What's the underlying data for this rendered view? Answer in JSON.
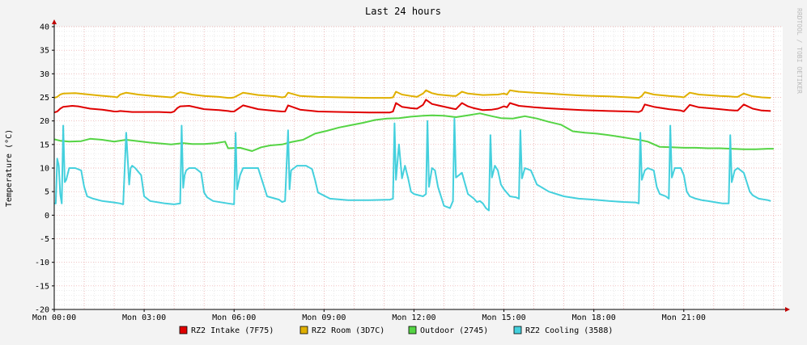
{
  "chart_data": {
    "type": "line",
    "title": "Last 24 hours",
    "ylabel": "Temperature (°C)",
    "xlabel": "",
    "ylim": [
      -20,
      40
    ],
    "yticks": [
      40,
      35,
      30,
      25,
      20,
      15,
      10,
      5,
      0,
      -5,
      -10,
      -15,
      -20
    ],
    "ytick_labels": [
      "40",
      "35",
      "30",
      "25",
      "20",
      "15",
      "10",
      "5",
      "0",
      "-5",
      "-10",
      "-15",
      "-20"
    ],
    "xlim_hours": [
      0,
      24.3
    ],
    "xticks_hours": [
      0,
      3,
      6,
      9,
      12,
      15,
      18,
      21
    ],
    "xtick_labels": [
      "Mon 00:00",
      "Mon 03:00",
      "Mon 06:00",
      "Mon 09:00",
      "Mon 12:00",
      "Mon 15:00",
      "Mon 18:00",
      "Mon 21:00"
    ],
    "grid": true,
    "legend_position": "bottom",
    "watermark": "RRDTOOL / TOBI OETIKER",
    "series": [
      {
        "name": "RZ2 Intake (7F75)",
        "color": "#e00000",
        "x": [
          0,
          0.1,
          0.2,
          0.3,
          0.6,
          0.8,
          1.2,
          1.6,
          1.9,
          2.0,
          2.1,
          2.2,
          2.4,
          2.6,
          3.0,
          3.5,
          3.9,
          4.0,
          4.1,
          4.2,
          4.5,
          5.0,
          5.5,
          5.8,
          5.9,
          6.0,
          6.3,
          6.8,
          7.4,
          7.6,
          7.7,
          7.8,
          8.2,
          8.8,
          9.6,
          10.5,
          11.2,
          11.3,
          11.4,
          11.6,
          11.9,
          12.1,
          12.3,
          12.4,
          12.6,
          12.8,
          13.3,
          13.4,
          13.6,
          13.8,
          14.0,
          14.3,
          14.6,
          14.8,
          15.0,
          15.1,
          15.2,
          15.5,
          16.0,
          16.4,
          17.0,
          17.6,
          18.0,
          18.5,
          19.2,
          19.5,
          19.6,
          19.7,
          20.0,
          20.5,
          20.9,
          21.0,
          21.2,
          21.5,
          22.2,
          22.5,
          22.7,
          22.8,
          23.0,
          23.3,
          23.6,
          23.9
        ],
        "values": [
          21.8,
          22.0,
          22.6,
          23.0,
          23.2,
          23.1,
          22.6,
          22.4,
          22.1,
          22.0,
          22.0,
          22.1,
          22.0,
          21.9,
          21.9,
          21.9,
          21.8,
          22.0,
          22.7,
          23.1,
          23.2,
          22.5,
          22.3,
          22.1,
          22.0,
          22.0,
          23.3,
          22.5,
          22.1,
          22.0,
          22.0,
          23.3,
          22.4,
          22.0,
          21.9,
          21.8,
          21.8,
          22.0,
          23.8,
          23.0,
          22.7,
          22.6,
          23.4,
          24.5,
          23.6,
          23.3,
          22.6,
          22.5,
          23.8,
          23.1,
          22.7,
          22.3,
          22.4,
          22.6,
          23.1,
          22.9,
          23.8,
          23.2,
          22.9,
          22.7,
          22.5,
          22.3,
          22.2,
          22.1,
          22.0,
          21.9,
          22.2,
          23.5,
          23.0,
          22.5,
          22.2,
          22.0,
          23.4,
          22.9,
          22.5,
          22.3,
          22.2,
          22.2,
          23.5,
          22.6,
          22.2,
          22.1
        ]
      },
      {
        "name": "RZ2 Room (3D7C)",
        "color": "#e0b000",
        "x": [
          0,
          0.1,
          0.2,
          0.3,
          0.7,
          1.0,
          1.5,
          2.0,
          2.1,
          2.2,
          2.4,
          2.8,
          3.3,
          3.9,
          4.0,
          4.1,
          4.2,
          4.6,
          5.0,
          5.5,
          5.8,
          5.9,
          6.0,
          6.3,
          6.8,
          7.4,
          7.6,
          7.7,
          7.8,
          8.2,
          8.8,
          9.6,
          10.5,
          11.2,
          11.3,
          11.4,
          11.6,
          11.9,
          12.1,
          12.3,
          12.4,
          12.6,
          12.8,
          13.3,
          13.4,
          13.6,
          13.8,
          14.3,
          14.8,
          15.0,
          15.1,
          15.2,
          15.5,
          16.0,
          16.5,
          17.0,
          17.6,
          18.0,
          18.5,
          19.2,
          19.5,
          19.6,
          19.7,
          20.0,
          20.5,
          20.9,
          21.0,
          21.2,
          21.5,
          22.2,
          22.5,
          22.7,
          22.8,
          23.0,
          23.3,
          23.6,
          23.9
        ],
        "values": [
          24.9,
          25.1,
          25.6,
          25.8,
          25.9,
          25.7,
          25.4,
          25.1,
          25.0,
          25.6,
          26.0,
          25.6,
          25.3,
          25.0,
          25.2,
          25.8,
          26.1,
          25.6,
          25.3,
          25.1,
          24.9,
          24.9,
          25.0,
          26.0,
          25.5,
          25.2,
          25.0,
          25.1,
          26.0,
          25.3,
          25.1,
          25.0,
          24.9,
          24.9,
          25.0,
          26.2,
          25.6,
          25.3,
          25.1,
          25.8,
          26.5,
          25.9,
          25.6,
          25.3,
          25.3,
          26.2,
          25.8,
          25.5,
          25.6,
          25.8,
          25.6,
          26.5,
          26.2,
          26.0,
          25.8,
          25.6,
          25.4,
          25.3,
          25.2,
          25.0,
          24.9,
          25.3,
          26.1,
          25.6,
          25.3,
          25.1,
          25.0,
          26.0,
          25.6,
          25.3,
          25.2,
          25.1,
          25.1,
          25.8,
          25.2,
          25.0,
          24.9
        ]
      },
      {
        "name": "Outdoor (2745)",
        "color": "#55d444",
        "x": [
          0,
          0.2,
          0.5,
          0.9,
          1.2,
          1.6,
          2.0,
          2.4,
          2.8,
          3.2,
          3.6,
          3.9,
          4.3,
          4.6,
          5.0,
          5.4,
          5.7,
          5.8,
          6.2,
          6.6,
          6.9,
          7.2,
          7.6,
          7.9,
          8.3,
          8.7,
          9.1,
          9.5,
          9.9,
          10.3,
          10.7,
          11.1,
          11.5,
          11.9,
          12.3,
          12.6,
          13.0,
          13.4,
          13.8,
          14.2,
          14.6,
          14.9,
          15.3,
          15.7,
          16.1,
          16.5,
          16.9,
          17.3,
          17.7,
          18.1,
          18.5,
          18.9,
          19.2,
          19.5,
          19.8,
          20.2,
          20.6,
          21.0,
          21.4,
          21.8,
          22.2,
          22.6,
          23.0,
          23.4,
          23.8,
          24.0
        ],
        "values": [
          16.1,
          15.8,
          15.6,
          15.7,
          16.2,
          16.0,
          15.6,
          16.0,
          15.7,
          15.4,
          15.2,
          15.0,
          15.3,
          15.1,
          15.1,
          15.3,
          15.6,
          14.2,
          14.3,
          13.6,
          14.4,
          14.8,
          15.0,
          15.5,
          16.0,
          17.3,
          17.9,
          18.6,
          19.1,
          19.6,
          20.2,
          20.5,
          20.6,
          20.9,
          21.1,
          21.2,
          21.1,
          20.8,
          21.2,
          21.6,
          21.0,
          20.6,
          20.5,
          21.0,
          20.5,
          19.8,
          19.2,
          17.8,
          17.5,
          17.3,
          17.0,
          16.6,
          16.3,
          16.0,
          15.6,
          14.5,
          14.4,
          14.3,
          14.3,
          14.2,
          14.2,
          14.1,
          14.0,
          14.0,
          14.1,
          14.1
        ]
      },
      {
        "name": "RZ2 Cooling (3588)",
        "color": "#44d0dd",
        "x": [
          0,
          0.05,
          0.1,
          0.15,
          0.2,
          0.25,
          0.3,
          0.35,
          0.4,
          0.5,
          0.7,
          0.9,
          1.0,
          1.1,
          1.3,
          1.6,
          2.0,
          2.2,
          2.3,
          2.4,
          2.5,
          2.55,
          2.6,
          2.7,
          2.9,
          3.0,
          3.1,
          3.2,
          3.4,
          3.7,
          4.0,
          4.2,
          4.25,
          4.3,
          4.35,
          4.4,
          4.5,
          4.7,
          4.9,
          5.0,
          5.1,
          5.3,
          5.8,
          6.0,
          6.05,
          6.1,
          6.2,
          6.3,
          6.5,
          6.8,
          6.9,
          7.1,
          7.5,
          7.6,
          7.7,
          7.8,
          7.85,
          7.9,
          8.1,
          8.4,
          8.6,
          8.7,
          8.8,
          9.2,
          9.8,
          10.5,
          11.2,
          11.3,
          11.35,
          11.4,
          11.5,
          11.6,
          11.7,
          11.8,
          11.9,
          12.0,
          12.3,
          12.4,
          12.45,
          12.5,
          12.6,
          12.7,
          12.8,
          13.0,
          13.2,
          13.3,
          13.35,
          13.4,
          13.5,
          13.6,
          13.8,
          14.0,
          14.1,
          14.2,
          14.3,
          14.4,
          14.5,
          14.55,
          14.6,
          14.7,
          14.8,
          14.9,
          15.0,
          15.2,
          15.4,
          15.5,
          15.55,
          15.6,
          15.7,
          15.9,
          16.1,
          16.5,
          17.0,
          17.5,
          18.0,
          18.5,
          19.0,
          19.4,
          19.5,
          19.55,
          19.6,
          19.7,
          19.8,
          20.0,
          20.1,
          20.2,
          20.4,
          20.5,
          20.55,
          20.6,
          20.7,
          20.9,
          21.0,
          21.1,
          21.2,
          21.4,
          21.6,
          21.8,
          22.0,
          22.3,
          22.5,
          22.55,
          22.6,
          22.7,
          22.8,
          23.0,
          23.1,
          23.2,
          23.3,
          23.5,
          23.8,
          23.9
        ],
        "values": [
          2.5,
          2.5,
          12.0,
          10.5,
          4.5,
          2.5,
          19.0,
          7.0,
          7.5,
          10.0,
          10.0,
          9.5,
          6.0,
          4.0,
          3.5,
          3.0,
          2.7,
          2.5,
          2.3,
          17.5,
          6.5,
          10.0,
          10.5,
          10.0,
          8.5,
          4.0,
          3.5,
          3.0,
          2.8,
          2.5,
          2.3,
          2.5,
          19.0,
          5.8,
          8.5,
          9.5,
          10.0,
          10.0,
          9.0,
          4.8,
          3.8,
          3.0,
          2.5,
          2.3,
          17.5,
          5.5,
          8.5,
          10.0,
          10.0,
          10.0,
          8.0,
          4.0,
          3.3,
          2.8,
          3.0,
          18.0,
          5.5,
          9.5,
          10.5,
          10.5,
          9.8,
          7.5,
          4.8,
          3.5,
          3.2,
          3.2,
          3.3,
          3.5,
          19.5,
          7.5,
          15.0,
          7.8,
          10.5,
          8.0,
          5.0,
          4.5,
          4.0,
          4.5,
          20.0,
          6.0,
          10.0,
          9.5,
          6.0,
          2.0,
          1.5,
          3.0,
          20.5,
          8.0,
          8.5,
          9.0,
          4.5,
          3.5,
          2.8,
          3.0,
          2.5,
          1.5,
          1.0,
          17.0,
          8.0,
          10.5,
          9.5,
          6.5,
          5.5,
          4.0,
          3.8,
          3.5,
          18.0,
          7.8,
          10.0,
          9.5,
          6.5,
          5.0,
          4.0,
          3.5,
          3.3,
          3.0,
          2.8,
          2.7,
          2.5,
          17.5,
          7.5,
          9.5,
          10.0,
          9.5,
          6.0,
          4.5,
          4.0,
          3.5,
          19.0,
          8.0,
          10.0,
          10.0,
          8.5,
          5.0,
          4.0,
          3.5,
          3.2,
          3.0,
          2.8,
          2.5,
          2.5,
          17.0,
          7.0,
          9.5,
          10.0,
          9.0,
          7.0,
          5.0,
          4.2,
          3.5,
          3.2,
          3.0
        ]
      }
    ]
  }
}
